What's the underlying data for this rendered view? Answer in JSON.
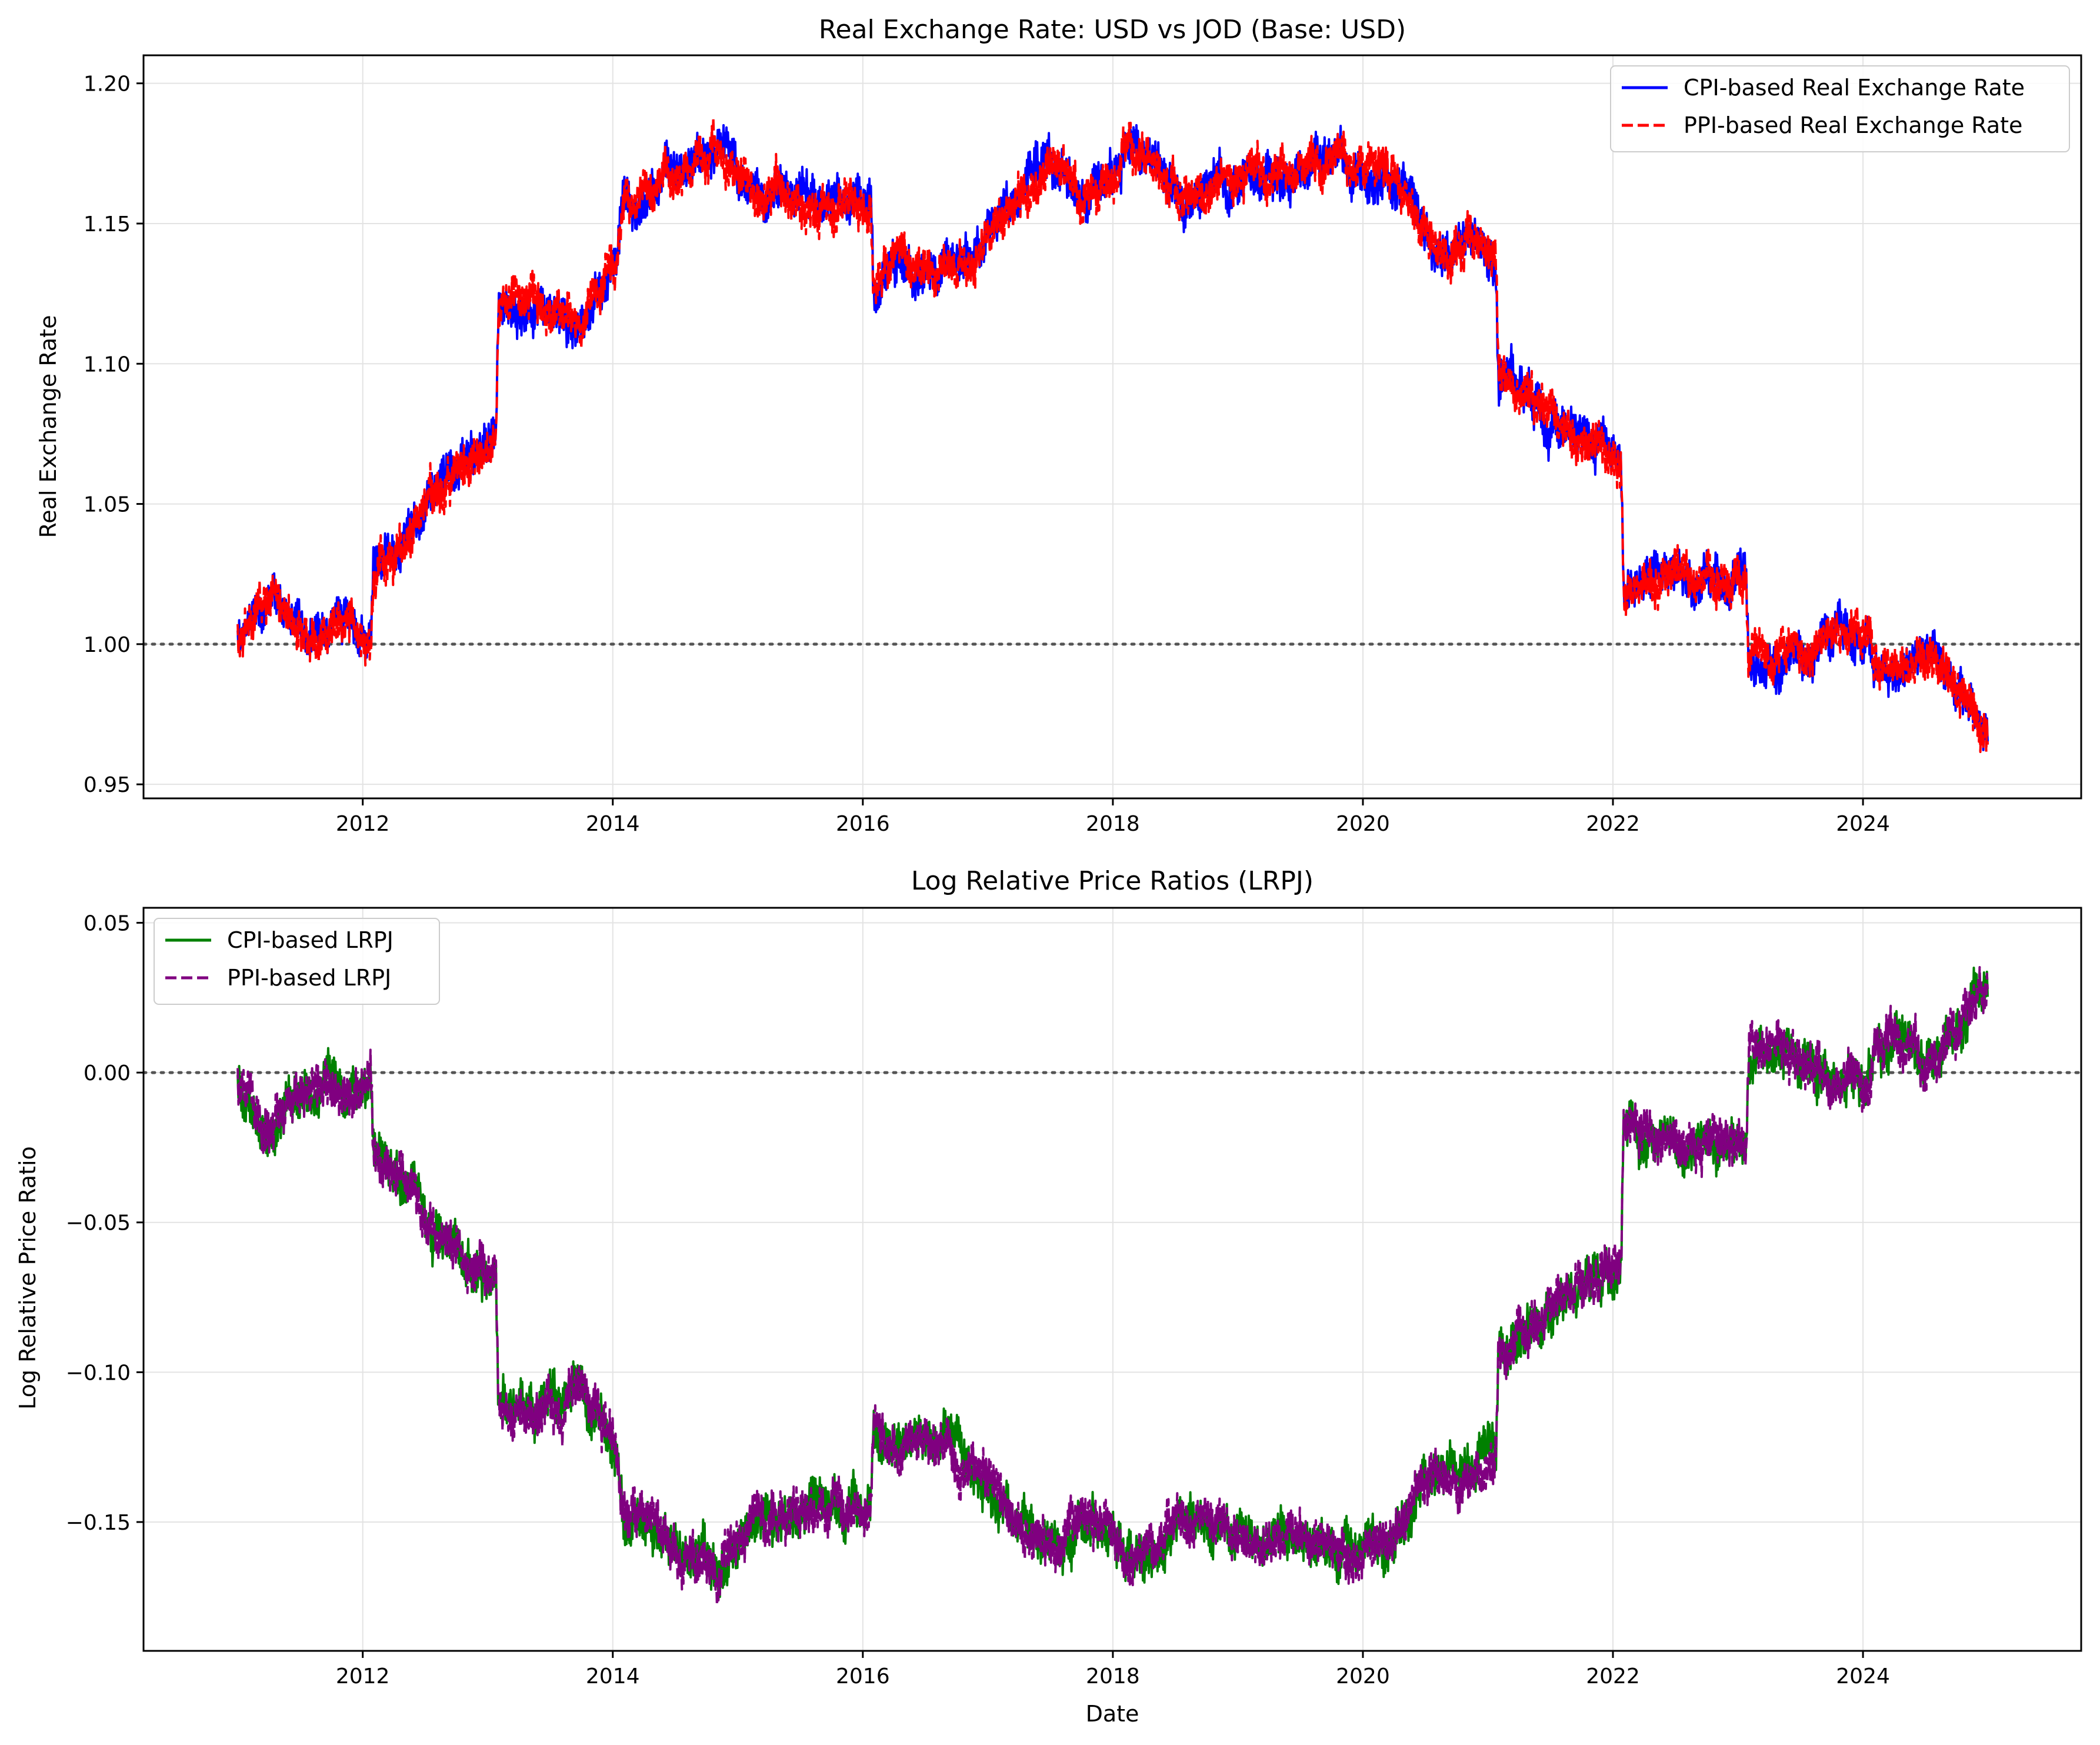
{
  "chart_data": [
    {
      "type": "line",
      "title": "Real Exchange Rate: USD vs JOD (Base: USD)",
      "xlabel": "",
      "ylabel": "Real Exchange Rate",
      "xlim": [
        "2010-04-01",
        "2025-09-30"
      ],
      "ylim": [
        0.945,
        1.21
      ],
      "x_ticks": [
        "2012",
        "2014",
        "2016",
        "2018",
        "2020",
        "2022",
        "2024"
      ],
      "y_ticks": [
        "0.95",
        "1.00",
        "1.05",
        "1.10",
        "1.15",
        "1.20"
      ],
      "y_tick_values": [
        0.95,
        1.0,
        1.05,
        1.1,
        1.15,
        1.2
      ],
      "grid": true,
      "reference_line": 1.0,
      "legend_position": "upper right",
      "noise_band": 0.012,
      "x": [
        "2011-01-01",
        "2011-02-01",
        "2011-04-01",
        "2011-06-01",
        "2011-09-01",
        "2011-12-15",
        "2012-01-25",
        "2012-02-01",
        "2012-05-01",
        "2012-08-01",
        "2012-11-01",
        "2013-01-25",
        "2013-02-01",
        "2013-05-01",
        "2013-08-01",
        "2013-10-01",
        "2014-01-15",
        "2014-02-01",
        "2014-05-01",
        "2014-08-01",
        "2014-11-01",
        "2015-02-01",
        "2015-06-01",
        "2015-10-01",
        "2016-01-25",
        "2016-02-01",
        "2016-04-01",
        "2016-07-01",
        "2016-10-01",
        "2017-01-01",
        "2017-04-01",
        "2017-07-01",
        "2017-10-01",
        "2018-01-25",
        "2018-02-01",
        "2018-05-01",
        "2018-08-01",
        "2018-11-01",
        "2019-02-01",
        "2019-06-01",
        "2019-10-01",
        "2020-01-15",
        "2020-03-01",
        "2020-05-01",
        "2020-08-01",
        "2020-11-01",
        "2021-01-25",
        "2021-02-01",
        "2021-05-01",
        "2021-08-01",
        "2021-11-01",
        "2022-01-25",
        "2022-02-01",
        "2022-05-01",
        "2022-08-01",
        "2022-11-01",
        "2023-01-25",
        "2023-02-01",
        "2023-05-01",
        "2023-08-01",
        "2023-11-01",
        "2024-01-25",
        "2024-02-01",
        "2024-05-01",
        "2024-08-01",
        "2024-11-01",
        "2024-12-31"
      ],
      "series": [
        {
          "name": "CPI-based Real Exchange Rate",
          "color": "#0000ff",
          "dash": "solid",
          "values": [
            1.003,
            1.008,
            1.018,
            1.009,
            1.002,
            1.006,
            0.999,
            1.025,
            1.035,
            1.055,
            1.064,
            1.072,
            1.118,
            1.12,
            1.119,
            1.111,
            1.138,
            1.16,
            1.163,
            1.172,
            1.18,
            1.163,
            1.159,
            1.157,
            1.156,
            1.125,
            1.139,
            1.131,
            1.134,
            1.145,
            1.161,
            1.173,
            1.162,
            1.168,
            1.181,
            1.172,
            1.158,
            1.164,
            1.168,
            1.166,
            1.172,
            1.17,
            1.172,
            1.16,
            1.141,
            1.144,
            1.136,
            1.097,
            1.091,
            1.078,
            1.072,
            1.067,
            1.018,
            1.022,
            1.024,
            1.024,
            1.025,
            0.994,
            0.993,
            0.999,
            1.003,
            1.003,
            0.992,
            0.991,
            0.995,
            0.978,
            0.968
          ]
        },
        {
          "name": "PPI-based Real Exchange Rate",
          "color": "#ff0000",
          "dash": "dashed",
          "values": [
            1.003,
            1.008,
            1.018,
            1.009,
            1.002,
            1.006,
            0.999,
            1.025,
            1.035,
            1.055,
            1.064,
            1.072,
            1.118,
            1.12,
            1.119,
            1.111,
            1.138,
            1.16,
            1.163,
            1.172,
            1.18,
            1.163,
            1.159,
            1.157,
            1.156,
            1.125,
            1.139,
            1.131,
            1.134,
            1.145,
            1.161,
            1.173,
            1.162,
            1.168,
            1.181,
            1.172,
            1.158,
            1.164,
            1.168,
            1.166,
            1.172,
            1.17,
            1.172,
            1.16,
            1.141,
            1.144,
            1.136,
            1.097,
            1.091,
            1.078,
            1.072,
            1.067,
            1.018,
            1.022,
            1.024,
            1.024,
            1.025,
            0.994,
            0.993,
            0.999,
            1.003,
            1.003,
            0.992,
            0.991,
            0.995,
            0.978,
            0.968
          ]
        }
      ]
    },
    {
      "type": "line",
      "title": "Log Relative Price Ratios (LRPJ)",
      "xlabel": "Date",
      "ylabel": "Log Relative Price Ratio",
      "xlim": [
        "2010-04-01",
        "2025-09-30"
      ],
      "ylim": [
        -0.193,
        0.055
      ],
      "x_ticks": [
        "2012",
        "2014",
        "2016",
        "2018",
        "2020",
        "2022",
        "2024"
      ],
      "y_ticks": [
        "−0.15",
        "−0.10",
        "−0.05",
        "0.00",
        "0.05"
      ],
      "y_tick_values": [
        -0.15,
        -0.1,
        -0.05,
        0.0,
        0.05
      ],
      "grid": true,
      "reference_line": 0.0,
      "legend_position": "upper left",
      "noise_band": 0.012,
      "x": [
        "2011-01-01",
        "2011-02-01",
        "2011-04-01",
        "2011-06-01",
        "2011-09-01",
        "2011-12-15",
        "2012-01-25",
        "2012-02-01",
        "2012-05-01",
        "2012-08-01",
        "2012-11-01",
        "2013-01-25",
        "2013-02-01",
        "2013-05-01",
        "2013-08-01",
        "2013-10-01",
        "2014-01-15",
        "2014-02-01",
        "2014-05-01",
        "2014-08-01",
        "2014-11-01",
        "2015-02-01",
        "2015-06-01",
        "2015-10-01",
        "2016-01-25",
        "2016-02-01",
        "2016-04-01",
        "2016-07-01",
        "2016-10-01",
        "2017-01-01",
        "2017-04-01",
        "2017-07-01",
        "2017-10-01",
        "2018-01-25",
        "2018-02-01",
        "2018-05-01",
        "2018-08-01",
        "2018-11-01",
        "2019-02-01",
        "2019-06-01",
        "2019-10-01",
        "2020-01-15",
        "2020-03-01",
        "2020-05-01",
        "2020-08-01",
        "2020-11-01",
        "2021-01-25",
        "2021-02-01",
        "2021-05-01",
        "2021-08-01",
        "2021-11-01",
        "2022-01-25",
        "2022-02-01",
        "2022-05-01",
        "2022-08-01",
        "2022-11-01",
        "2023-01-25",
        "2023-02-01",
        "2023-05-01",
        "2023-08-01",
        "2023-11-01",
        "2024-01-25",
        "2024-02-01",
        "2024-05-01",
        "2024-08-01",
        "2024-11-01",
        "2024-12-31"
      ],
      "series": [
        {
          "name": "CPI-based LRPJ",
          "color": "#008000",
          "dash": "solid",
          "values": [
            -0.003,
            -0.008,
            -0.018,
            -0.009,
            -0.002,
            -0.006,
            0.001,
            -0.025,
            -0.035,
            -0.055,
            -0.064,
            -0.07,
            -0.112,
            -0.113,
            -0.112,
            -0.105,
            -0.129,
            -0.149,
            -0.152,
            -0.16,
            -0.166,
            -0.151,
            -0.147,
            -0.146,
            -0.145,
            -0.118,
            -0.13,
            -0.123,
            -0.126,
            -0.136,
            -0.149,
            -0.16,
            -0.15,
            -0.155,
            -0.166,
            -0.158,
            -0.147,
            -0.152,
            -0.155,
            -0.153,
            -0.158,
            -0.157,
            -0.158,
            -0.149,
            -0.132,
            -0.135,
            -0.128,
            -0.093,
            -0.087,
            -0.075,
            -0.07,
            -0.065,
            -0.018,
            -0.022,
            -0.024,
            -0.024,
            -0.025,
            0.006,
            0.007,
            0.001,
            -0.003,
            -0.003,
            0.008,
            0.009,
            0.005,
            0.022,
            0.032
          ]
        },
        {
          "name": "PPI-based LRPJ",
          "color": "#800080",
          "dash": "dashed",
          "values": [
            -0.003,
            -0.008,
            -0.018,
            -0.009,
            -0.002,
            -0.006,
            0.001,
            -0.025,
            -0.035,
            -0.055,
            -0.064,
            -0.07,
            -0.112,
            -0.113,
            -0.112,
            -0.105,
            -0.129,
            -0.149,
            -0.152,
            -0.16,
            -0.166,
            -0.151,
            -0.147,
            -0.146,
            -0.145,
            -0.118,
            -0.13,
            -0.123,
            -0.126,
            -0.136,
            -0.149,
            -0.16,
            -0.15,
            -0.155,
            -0.166,
            -0.158,
            -0.147,
            -0.152,
            -0.155,
            -0.153,
            -0.158,
            -0.157,
            -0.158,
            -0.149,
            -0.132,
            -0.135,
            -0.128,
            -0.093,
            -0.087,
            -0.075,
            -0.07,
            -0.065,
            -0.018,
            -0.022,
            -0.024,
            -0.024,
            -0.025,
            0.006,
            0.007,
            0.001,
            -0.003,
            -0.003,
            0.008,
            0.009,
            0.005,
            0.022,
            0.032
          ]
        }
      ]
    }
  ]
}
